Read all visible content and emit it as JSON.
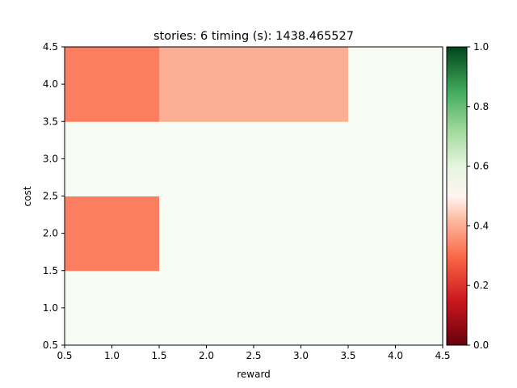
{
  "chart_data": {
    "type": "heatmap",
    "title": "stories: 6 timing (s): 1438.465527",
    "xlabel": "reward",
    "ylabel": "cost",
    "xlim": [
      0.5,
      4.5
    ],
    "ylim": [
      0.5,
      4.5
    ],
    "x_ticks": [
      "0.5",
      "1.0",
      "1.5",
      "2.0",
      "2.5",
      "3.0",
      "3.5",
      "4.0",
      "4.5"
    ],
    "y_ticks": [
      "0.5",
      "1.0",
      "1.5",
      "2.0",
      "2.5",
      "3.0",
      "3.5",
      "4.0",
      "4.5"
    ],
    "x_categories": [
      1,
      2,
      3,
      4
    ],
    "y_categories": [
      1,
      2,
      3,
      4
    ],
    "values": [
      [
        0.5,
        0.5,
        0.5,
        0.5
      ],
      [
        0.33,
        0.5,
        0.5,
        0.5
      ],
      [
        0.5,
        0.5,
        0.5,
        0.5
      ],
      [
        0.33,
        0.4,
        0.4,
        0.5
      ]
    ],
    "colorbar": {
      "colormap": "RdYlGn-like (red-white-green)",
      "range": [
        0.0,
        1.0
      ],
      "ticks": [
        "0.0",
        "0.2",
        "0.4",
        "0.6",
        "0.8",
        "1.0"
      ],
      "colors": {
        "low": "#67000d",
        "mid_low": "#fb6a4a",
        "center": "#f7fcf5",
        "mid_high": "#74c476",
        "high": "#00441b"
      }
    }
  }
}
